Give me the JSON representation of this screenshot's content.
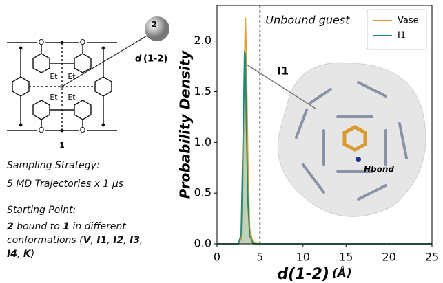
{
  "chart_data": {
    "type": "line",
    "ylabel": "Probability Density",
    "xlabel": "d(1-2)",
    "xlabel_unit": "(Å)",
    "x": [
      0,
      2.5,
      2.8,
      3.0,
      3.2,
      3.3,
      3.4,
      3.6,
      3.8,
      4.2,
      5,
      10,
      25
    ],
    "series": [
      {
        "name": "Vase",
        "color": "#e0a030",
        "values": [
          0,
          0,
          0.05,
          0.6,
          1.8,
          2.23,
          1.9,
          0.8,
          0.15,
          0.01,
          0,
          0,
          0
        ]
      },
      {
        "name": "I1",
        "color": "#1f8a7a",
        "values": [
          0,
          0,
          0.1,
          0.9,
          1.9,
          1.85,
          1.2,
          0.4,
          0.08,
          0,
          0,
          0,
          0
        ]
      }
    ],
    "xlim": [
      0,
      25
    ],
    "ylim": [
      0,
      2.35
    ],
    "xticks": [
      0,
      5,
      10,
      15,
      20,
      25
    ],
    "yticks": [
      {
        "value": 0,
        "label": "0.0"
      },
      0.5,
      {
        "value": 1,
        "label": "1.0"
      },
      1.5,
      {
        "value": 2,
        "label": "2.0"
      }
    ],
    "legend": "upper right",
    "threshold_x": 5,
    "annotations": {
      "unbound": "Unbound guest",
      "conformer": "I1",
      "hbond": "Hbond"
    }
  },
  "diagram": {
    "guest": "2",
    "host": "1",
    "distance_symbol": "d",
    "distance_pair": "(1-2)",
    "oxygen": [
      "O",
      "O",
      "O",
      "O",
      "O",
      "O",
      "O",
      "O"
    ],
    "ethyl": [
      "Et",
      "Et",
      "Et",
      "Et"
    ]
  },
  "caption": {
    "strategy_title": "Sampling Strategy:",
    "strategy": "5 MD Trajectories x 1 μs",
    "start_title": "Starting Point:",
    "start_lines": [
      [
        {
          "text": "2",
          "bold": true
        },
        {
          "text": " bound to ",
          "bold": false
        },
        {
          "text": "1",
          "bold": true
        },
        {
          "text": " in different",
          "bold": false
        }
      ],
      [
        {
          "text": "conformations (",
          "bold": false
        },
        {
          "text": "V",
          "bold": true
        },
        {
          "text": ", ",
          "bold": false
        },
        {
          "text": "I1",
          "bold": true
        },
        {
          "text": ", ",
          "bold": false
        },
        {
          "text": "I2",
          "bold": true
        },
        {
          "text": ", ",
          "bold": false
        },
        {
          "text": "I3",
          "bold": true
        },
        {
          "text": ",",
          "bold": false
        }
      ],
      [
        {
          "text": "I4",
          "bold": true
        },
        {
          "text": ", ",
          "bold": false
        },
        {
          "text": "K",
          "bold": true
        },
        {
          "text": ")",
          "bold": false
        }
      ]
    ]
  }
}
